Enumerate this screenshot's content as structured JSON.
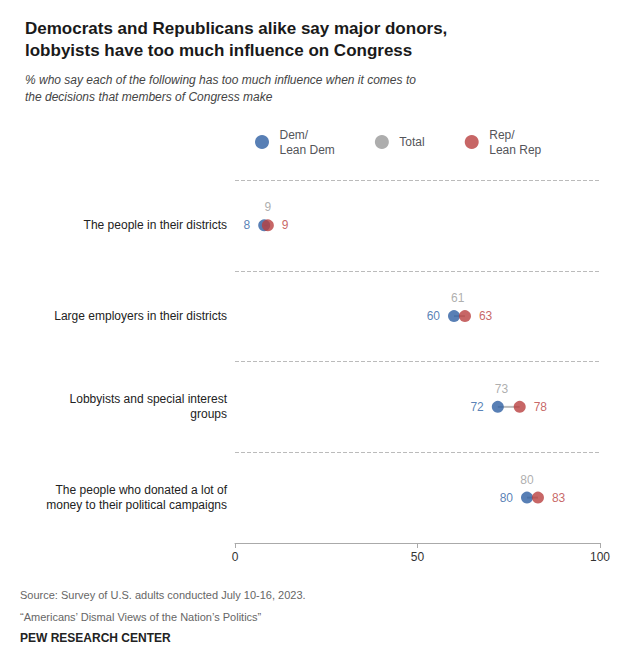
{
  "chart_data": {
    "type": "dumbbell",
    "title": "Democrats and Republicans alike say major donors,\nlobbyists have too much influence on Congress",
    "subtitle": "% who say each of the following has too much influence when it comes to\nthe decisions that members of Congress make",
    "categories": [
      "The people in their districts",
      "Large employers in their districts",
      "Lobbyists and special interest\ngroups",
      "The people who donated a lot of\nmoney to their political campaigns"
    ],
    "series": [
      {
        "name": "Dem/\nLean Dem",
        "color": "#2E5FA3",
        "marker": "circle",
        "values": [
          8,
          60,
          72,
          80
        ]
      },
      {
        "name": "Total",
        "color": "#999999",
        "marker": "none",
        "values": [
          9,
          61,
          73,
          80
        ]
      },
      {
        "name": "Rep/\nLean Rep",
        "color": "#B94040",
        "marker": "circle",
        "values": [
          9,
          63,
          78,
          83
        ]
      }
    ],
    "orientation": "horizontal",
    "xlim": [
      0,
      100
    ],
    "xticks": [
      0,
      50,
      100
    ],
    "grid": false,
    "legend": "top",
    "data_labels": true,
    "annotations": [
      "Source: Survey of U.S. adults conducted July 10-16, 2023.",
      "“Americans’ Dismal Views of the Nation’s Politics”",
      "PEW RESEARCH CENTER"
    ]
  }
}
